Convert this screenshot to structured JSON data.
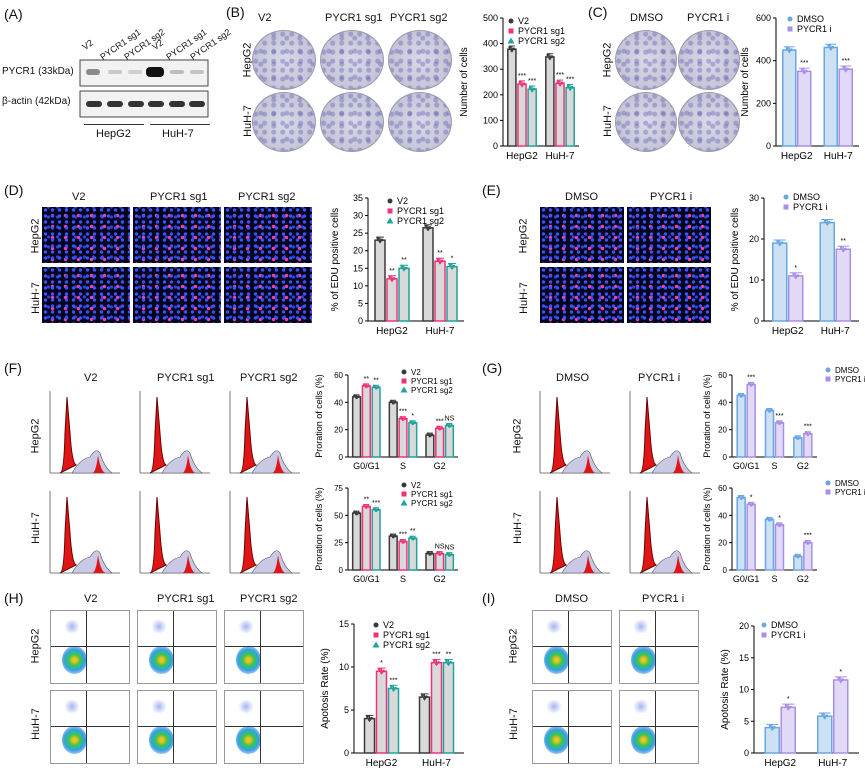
{
  "panels": {
    "A": {
      "label": "(A)",
      "lanes": [
        "V2",
        "PYCR1 sg1",
        "PYCR1 sg2",
        "V2",
        "PYCR1 sg1",
        "PYCR1 sg2"
      ],
      "rows": [
        "PYCR1 (33kDa)",
        "β-actin (42kDa)"
      ],
      "groups": [
        "HepG2",
        "HuH-7"
      ]
    },
    "B": {
      "label": "(B)",
      "cols": [
        "V2",
        "PYCR1 sg1",
        "PYCR1 sg2"
      ],
      "rows": [
        "HepG2",
        "HuH-7"
      ]
    },
    "C": {
      "label": "(C)",
      "cols": [
        "DMSO",
        "PYCR1 i"
      ],
      "rows": [
        "HepG2",
        "HuH-7"
      ]
    },
    "D": {
      "label": "(D)",
      "cols": [
        "V2",
        "PYCR1 sg1",
        "PYCR1 sg2"
      ],
      "rows": [
        "HepG2",
        "HuH-7"
      ]
    },
    "E": {
      "label": "(E)",
      "cols": [
        "DMSO",
        "PYCR1 i"
      ],
      "rows": [
        "HepG2",
        "HuH-7"
      ]
    },
    "F": {
      "label": "(F)",
      "cols": [
        "V2",
        "PYCR1 sg1",
        "PYCR1 sg2"
      ],
      "rows": [
        "HepG2",
        "HuH-7"
      ]
    },
    "G": {
      "label": "(G)",
      "cols": [
        "DMSO",
        "PYCR1 i"
      ],
      "rows": [
        "HepG2",
        "HuH-7"
      ]
    },
    "H": {
      "label": "(H)",
      "cols": [
        "V2",
        "PYCR1 sg1",
        "PYCR1 sg2"
      ],
      "rows": [
        "HepG2",
        "HuH-7"
      ]
    },
    "I": {
      "label": "(I)",
      "cols": [
        "DMSO",
        "PYCR1 i"
      ],
      "rows": [
        "HepG2",
        "HuH-7"
      ]
    }
  },
  "colors": {
    "v2": "#3a3a3a",
    "sg1": "#f0327a",
    "sg2": "#1fa39a",
    "dmso": "#6aa6e0",
    "inh": "#a98ee6"
  },
  "chart_data": [
    {
      "id": "B",
      "type": "bar",
      "ylabel": "Number of cells",
      "ylim": [
        0,
        500
      ],
      "yticks": [
        0,
        100,
        200,
        300,
        400,
        500
      ],
      "categories": [
        "HepG2",
        "HuH-7"
      ],
      "series": [
        {
          "name": "V2",
          "values": [
            378,
            348
          ]
        },
        {
          "name": "PYCR1 sg1",
          "values": [
            242,
            245
          ]
        },
        {
          "name": "PYCR1 sg2",
          "values": [
            222,
            228
          ]
        }
      ],
      "annotations": [
        [
          "",
          "***",
          "***"
        ],
        [
          "",
          "***",
          "***"
        ]
      ]
    },
    {
      "id": "C",
      "type": "bar",
      "ylabel": "Number of cells",
      "ylim": [
        0,
        600
      ],
      "yticks": [
        0,
        200,
        400,
        600
      ],
      "categories": [
        "HepG2",
        "HuH-7"
      ],
      "series": [
        {
          "name": "DMSO",
          "values": [
            450,
            462
          ]
        },
        {
          "name": "PYCR1 i",
          "values": [
            350,
            360
          ]
        }
      ],
      "annotations": [
        [
          "",
          "***"
        ],
        [
          "",
          "***"
        ]
      ]
    },
    {
      "id": "D",
      "type": "bar",
      "ylabel": "% of EDU positive cells",
      "ylim": [
        0,
        35
      ],
      "yticks": [
        0,
        5,
        10,
        15,
        20,
        25,
        30,
        35
      ],
      "categories": [
        "HepG2",
        "HuH-7"
      ],
      "series": [
        {
          "name": "V2",
          "values": [
            23,
            26.5
          ]
        },
        {
          "name": "PYCR1 sg1",
          "values": [
            12,
            17
          ]
        },
        {
          "name": "PYCR1 sg2",
          "values": [
            15,
            15.5
          ]
        }
      ],
      "annotations": [
        [
          "",
          "**",
          "**"
        ],
        [
          "",
          "**",
          "*"
        ]
      ]
    },
    {
      "id": "E",
      "type": "bar",
      "ylabel": "% of EDU positive cells",
      "ylim": [
        0,
        30
      ],
      "yticks": [
        0,
        10,
        20,
        30
      ],
      "categories": [
        "HepG2",
        "HuH-7"
      ],
      "series": [
        {
          "name": "DMSO",
          "values": [
            19,
            24
          ]
        },
        {
          "name": "PYCR1 i",
          "values": [
            11,
            17.5
          ]
        }
      ],
      "annotations": [
        [
          "",
          "*"
        ],
        [
          "",
          "**"
        ]
      ]
    },
    {
      "id": "F1",
      "type": "bar",
      "ylabel": "Proration of cells (%)",
      "ylim": [
        0,
        60
      ],
      "yticks": [
        0,
        20,
        40,
        60
      ],
      "categories": [
        "G0/G1",
        "S",
        "G2"
      ],
      "series": [
        {
          "name": "V2",
          "values": [
            44,
            40,
            16
          ]
        },
        {
          "name": "PYCR1 sg1",
          "values": [
            52,
            28,
            21
          ]
        },
        {
          "name": "PYCR1 sg2",
          "values": [
            51,
            25,
            23
          ]
        }
      ],
      "annotations": [
        [
          "",
          "**",
          "**"
        ],
        [
          "",
          "***",
          "*"
        ],
        [
          "",
          "***",
          "NS"
        ]
      ]
    },
    {
      "id": "F2",
      "type": "bar",
      "ylabel": "Proration of cells (%)",
      "ylim": [
        0,
        75
      ],
      "yticks": [
        0,
        25,
        50,
        75
      ],
      "categories": [
        "G0/G1",
        "S",
        "G2"
      ],
      "series": [
        {
          "name": "V2",
          "values": [
            52,
            31,
            15
          ]
        },
        {
          "name": "PYCR1 sg1",
          "values": [
            58,
            26,
            15
          ]
        },
        {
          "name": "PYCR1 sg2",
          "values": [
            55,
            29,
            14
          ]
        }
      ],
      "annotations": [
        [
          "",
          "**",
          "***"
        ],
        [
          "",
          "***",
          "**"
        ],
        [
          "",
          "NS",
          "NS"
        ]
      ]
    },
    {
      "id": "G1",
      "type": "bar",
      "ylabel": "Proration of cells (%)",
      "ylim": [
        0,
        60
      ],
      "yticks": [
        0,
        20,
        40,
        60
      ],
      "categories": [
        "G0/G1",
        "S",
        "G2"
      ],
      "series": [
        {
          "name": "DMSO",
          "values": [
            45,
            34,
            14
          ]
        },
        {
          "name": "PYCR1 i",
          "values": [
            53,
            25,
            17
          ]
        }
      ],
      "annotations": [
        [
          "",
          "***"
        ],
        [
          "",
          "***"
        ],
        [
          "",
          "***"
        ]
      ]
    },
    {
      "id": "G2",
      "type": "bar",
      "ylabel": "Proration of cells (%)",
      "ylim": [
        0,
        60
      ],
      "yticks": [
        0,
        20,
        40,
        60
      ],
      "categories": [
        "G0/G1",
        "S",
        "G2"
      ],
      "series": [
        {
          "name": "DMSO",
          "values": [
            53,
            37,
            10
          ]
        },
        {
          "name": "PYCR1 i",
          "values": [
            48,
            33,
            20
          ]
        }
      ],
      "annotations": [
        [
          "",
          "*"
        ],
        [
          "",
          "*"
        ],
        [
          "",
          "***"
        ]
      ]
    },
    {
      "id": "H",
      "type": "bar",
      "ylabel": "Apotosis Rate (%)",
      "ylim": [
        0,
        15
      ],
      "yticks": [
        0,
        5,
        10,
        15
      ],
      "categories": [
        "HepG2",
        "HuH-7"
      ],
      "series": [
        {
          "name": "V2",
          "values": [
            4,
            6.5
          ]
        },
        {
          "name": "PYCR1 sg1",
          "values": [
            9.5,
            10.5
          ]
        },
        {
          "name": "PYCR1 sg2",
          "values": [
            7.5,
            10.5
          ]
        }
      ],
      "annotations": [
        [
          "",
          "*",
          "***"
        ],
        [
          "",
          "***",
          "**"
        ]
      ]
    },
    {
      "id": "I",
      "type": "bar",
      "ylabel": "Apotosis Rate (%)",
      "ylim": [
        0,
        20
      ],
      "yticks": [
        0,
        5,
        10,
        15,
        20
      ],
      "categories": [
        "HepG2",
        "HuH-7"
      ],
      "series": [
        {
          "name": "DMSO",
          "values": [
            4,
            5.8
          ]
        },
        {
          "name": "PYCR1 i",
          "values": [
            7.2,
            11.5
          ]
        }
      ],
      "annotations": [
        [
          "",
          "*"
        ],
        [
          "",
          "*"
        ]
      ]
    }
  ]
}
